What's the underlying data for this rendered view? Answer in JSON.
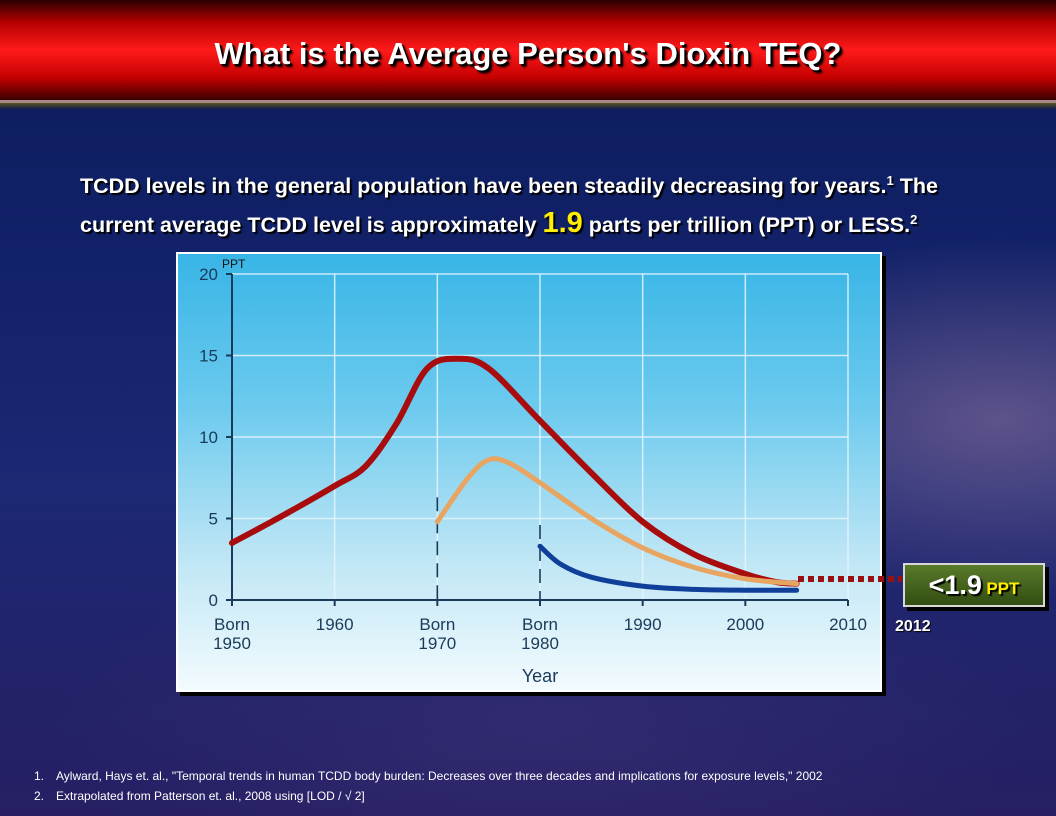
{
  "header": {
    "title": "What is the Average Person's Dioxin TEQ?"
  },
  "intro": {
    "part1": "TCDD levels in the general population have been steadily decreasing for years.",
    "sup1": "1",
    "part2": " The current average TCDD level is approximately ",
    "highlight": "1.9",
    "part3": " parts per trillion (PPT) or LESS.",
    "sup2": "2"
  },
  "chart_data": {
    "type": "line",
    "unit_label": "PPT",
    "xlabel": "Year",
    "ylabel": "",
    "xlim": [
      1950,
      2010
    ],
    "ylim": [
      0,
      20
    ],
    "yticks": [
      0,
      5,
      10,
      15,
      20
    ],
    "xticks": [
      {
        "x": 1950,
        "label": [
          "Born",
          "1950"
        ]
      },
      {
        "x": 1960,
        "label": [
          "1960"
        ]
      },
      {
        "x": 1970,
        "label": [
          "Born",
          "1970"
        ]
      },
      {
        "x": 1980,
        "label": [
          "Born",
          "1980"
        ]
      },
      {
        "x": 1990,
        "label": [
          "1990"
        ]
      },
      {
        "x": 2000,
        "label": [
          "2000"
        ]
      },
      {
        "x": 2010,
        "label": [
          "2010"
        ]
      }
    ],
    "grid": true,
    "series": [
      {
        "color": "#a80c0c",
        "points": [
          [
            1950,
            3.5
          ],
          [
            1955,
            5.2
          ],
          [
            1960,
            7
          ],
          [
            1963,
            8.2
          ],
          [
            1966,
            10.8
          ],
          [
            1969,
            14.2
          ],
          [
            1972,
            14.8
          ],
          [
            1975,
            14.2
          ],
          [
            1980,
            11
          ],
          [
            1985,
            7.8
          ],
          [
            1990,
            4.8
          ],
          [
            1995,
            2.8
          ],
          [
            2000,
            1.6
          ],
          [
            2003,
            1.1
          ],
          [
            2005,
            1.0
          ]
        ]
      },
      {
        "color": "#e8a562",
        "points": [
          [
            1970,
            4.8
          ],
          [
            1973,
            7.5
          ],
          [
            1975,
            8.6
          ],
          [
            1977,
            8.4
          ],
          [
            1980,
            7.2
          ],
          [
            1985,
            5
          ],
          [
            1990,
            3.2
          ],
          [
            1995,
            2
          ],
          [
            2000,
            1.3
          ],
          [
            2005,
            1.0
          ]
        ]
      },
      {
        "color": "#0f3f99",
        "points": [
          [
            1980,
            3.3
          ],
          [
            1982,
            2.2
          ],
          [
            1985,
            1.4
          ],
          [
            1990,
            0.85
          ],
          [
            1995,
            0.65
          ],
          [
            2000,
            0.6
          ],
          [
            2005,
            0.6
          ]
        ]
      }
    ],
    "cohort_markers": [
      1970,
      1980
    ]
  },
  "callout": {
    "value": "<1.9",
    "unit": "PPT",
    "year": "2012"
  },
  "footnotes": [
    {
      "num": "1.",
      "text": "Aylward, Hays et. al., \"Temporal trends in human TCDD body burden: Decreases over three decades and implications for exposure levels,\" 2002"
    },
    {
      "num": "2.",
      "text": "Extrapolated from Patterson et. al., 2008 using [LOD / √ 2]"
    }
  ],
  "colors": {
    "header_red": "#d80000",
    "highlight": "#ffee00",
    "callout_green": "#4a6a20"
  }
}
